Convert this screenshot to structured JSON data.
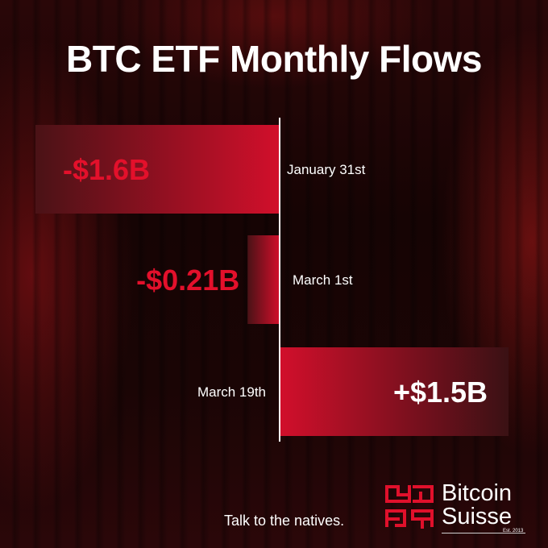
{
  "title": "BTC ETF Monthly Flows",
  "chart_data": {
    "type": "bar",
    "orientation": "horizontal",
    "categories": [
      "January 31st",
      "March 1st",
      "March 19th"
    ],
    "values": [
      -1.6,
      -0.21,
      1.5
    ],
    "value_labels": [
      "-$1.6B",
      "-$0.21B",
      "+$1.5B"
    ],
    "unit": "B",
    "title": "BTC ETF Monthly Flows",
    "xlabel": "",
    "ylabel": "",
    "xlim": [
      -1.6,
      1.5
    ],
    "grid": false
  },
  "footer": {
    "tagline": "Talk to the natives.",
    "brand_line1": "Bitcoin",
    "brand_line2": "Suisse",
    "brand_est": "Est. 2013"
  },
  "colors": {
    "accent": "#d0102a",
    "negative_label": "#e3102b",
    "positive_label": "#ffffff",
    "background": "#160404"
  }
}
